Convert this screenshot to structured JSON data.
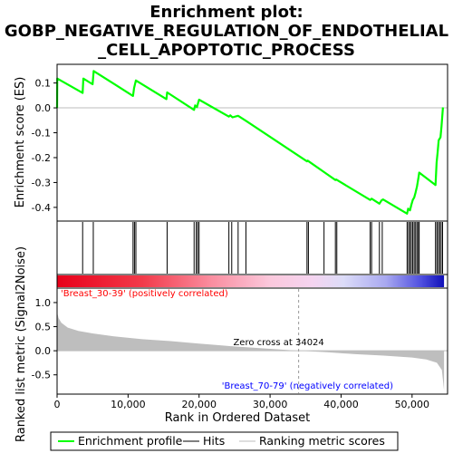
{
  "title_lines": [
    "Enrichment plot:",
    "GOBP_NEGATIVE_REGULATION_OF_ENDOTHELIAL",
    "_CELL_APOPTOTIC_PROCESS"
  ],
  "colors": {
    "es_line": "#00ff00",
    "hits": "#000000",
    "metric_fill": "#bebebe",
    "pos_label": "#ff0000",
    "neg_label": "#0000ff",
    "zero_line": "#bebebe"
  },
  "chart_data": [
    {
      "type": "line",
      "name": "enrichment-profile",
      "ylabel": "Enrichment score (ES)",
      "xlim": [
        0,
        55000
      ],
      "ylim": [
        -0.455,
        0.175
      ],
      "yticks": [
        0.1,
        0.0,
        -0.1,
        -0.2,
        -0.3,
        -0.4
      ],
      "ytick_labels": [
        "0.1",
        "0.0",
        "-0.1",
        "-0.2",
        "-0.3",
        "-0.4"
      ],
      "points": [
        [
          0,
          0.0
        ],
        [
          20,
          0.118
        ],
        [
          3600,
          0.06
        ],
        [
          3700,
          0.118
        ],
        [
          5000,
          0.095
        ],
        [
          5150,
          0.148
        ],
        [
          10700,
          0.048
        ],
        [
          10850,
          0.08
        ],
        [
          11100,
          0.11
        ],
        [
          15400,
          0.035
        ],
        [
          15500,
          0.062
        ],
        [
          19300,
          -0.008
        ],
        [
          19450,
          0.01
        ],
        [
          19700,
          0.003
        ],
        [
          20000,
          0.033
        ],
        [
          24200,
          -0.035
        ],
        [
          24400,
          -0.03
        ],
        [
          24700,
          -0.038
        ],
        [
          25500,
          -0.032
        ],
        [
          26600,
          -0.052
        ],
        [
          35200,
          -0.215
        ],
        [
          35300,
          -0.212
        ],
        [
          37600,
          -0.258
        ],
        [
          39200,
          -0.29
        ],
        [
          39300,
          -0.288
        ],
        [
          44100,
          -0.37
        ],
        [
          44300,
          -0.365
        ],
        [
          45400,
          -0.385
        ],
        [
          45700,
          -0.372
        ],
        [
          45900,
          -0.368
        ],
        [
          49300,
          -0.425
        ],
        [
          49450,
          -0.405
        ],
        [
          49700,
          -0.412
        ],
        [
          49900,
          -0.39
        ],
        [
          50100,
          -0.37
        ],
        [
          50300,
          -0.36
        ],
        [
          50500,
          -0.34
        ],
        [
          50700,
          -0.315
        ],
        [
          50900,
          -0.28
        ],
        [
          51000,
          -0.26
        ],
        [
          53300,
          -0.31
        ],
        [
          53450,
          -0.22
        ],
        [
          53600,
          -0.18
        ],
        [
          53750,
          -0.13
        ],
        [
          54000,
          -0.118
        ],
        [
          54150,
          -0.075
        ],
        [
          54350,
          0.002
        ]
      ]
    },
    {
      "type": "scatter",
      "name": "hits",
      "x": [
        3600,
        5100,
        10700,
        10900,
        11100,
        15500,
        19300,
        19600,
        19800,
        20000,
        24200,
        24600,
        25500,
        26600,
        35200,
        35400,
        37600,
        39200,
        39400,
        44100,
        44300,
        45400,
        45800,
        49300,
        49500,
        49700,
        49900,
        50100,
        50300,
        50500,
        50700,
        50900,
        51000,
        53300,
        53500,
        53700,
        53900,
        54100,
        54300
      ]
    },
    {
      "type": "area",
      "name": "ranking-metric",
      "ylabel": "Ranked list metric (Signal2Noise)",
      "xlabel": "Rank in Ordered Dataset",
      "xlim": [
        0,
        55000
      ],
      "ylim": [
        -0.9,
        1.3
      ],
      "yticks": [
        1.0,
        0.5,
        0.0,
        -0.5
      ],
      "ytick_labels": [
        "1.0",
        "0.5",
        "0.0",
        "-0.5"
      ],
      "xticks": [
        0,
        10000,
        20000,
        30000,
        40000,
        50000
      ],
      "xtick_labels": [
        "0",
        "10,000",
        "20,000",
        "30,000",
        "40,000",
        "50,000"
      ],
      "points": [
        [
          0,
          0.8
        ],
        [
          200,
          0.68
        ],
        [
          600,
          0.58
        ],
        [
          1500,
          0.48
        ],
        [
          3000,
          0.41
        ],
        [
          5000,
          0.36
        ],
        [
          8000,
          0.3
        ],
        [
          12000,
          0.24
        ],
        [
          16000,
          0.2
        ],
        [
          20000,
          0.15
        ],
        [
          25000,
          0.09
        ],
        [
          30000,
          0.04
        ],
        [
          34024,
          0.0
        ],
        [
          38000,
          -0.03
        ],
        [
          42000,
          -0.07
        ],
        [
          46000,
          -0.1
        ],
        [
          50000,
          -0.14
        ],
        [
          52000,
          -0.18
        ],
        [
          53500,
          -0.25
        ],
        [
          54200,
          -0.4
        ],
        [
          54500,
          -0.82
        ]
      ],
      "zero_cross_label": "Zero cross at 34024",
      "zero_cross": 34024,
      "pos_label": "'Breast_30-39' (positively correlated)",
      "neg_label": "'Breast_70-79' (negatively correlated)"
    }
  ],
  "legend": [
    {
      "label": "Enrichment profile",
      "kind": "es"
    },
    {
      "label": "Hits",
      "kind": "hit"
    },
    {
      "label": "Ranking metric scores",
      "kind": "metric"
    }
  ]
}
